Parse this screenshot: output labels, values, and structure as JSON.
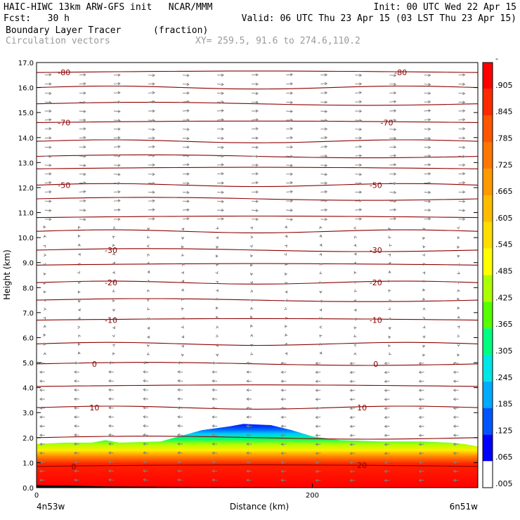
{
  "header": {
    "line1_left": "HAIC-HIWC 13km ARW-GFS init   NCAR/MMM",
    "line1_right": "Init: 00 UTC Wed 22 Apr 15",
    "line2_left": "Fcst:   30 h",
    "line2_right": "Valid: 06 UTC Thu 23 Apr 15 (03 LST Thu 23 Apr 15)",
    "field_name": "Boundary Layer Tracer",
    "field_units": "(fraction)",
    "vector_label": "Circulation vectors",
    "cross_section": "XY= 259.5, 91.6 to 274.6,110.2"
  },
  "colors": {
    "contour": "#8b0000",
    "vector": "#808080",
    "ramp": [
      "#ffffff",
      "#0000ff",
      "#0055ff",
      "#00aaff",
      "#00e5e5",
      "#00ff80",
      "#55ff00",
      "#aaff00",
      "#ffff00",
      "#ffdd00",
      "#ffbb00",
      "#ff9900",
      "#ff7700",
      "#ff5500",
      "#ff2a00",
      "#ff0000"
    ]
  },
  "chart_data": {
    "type": "heatmap",
    "title": "Boundary Layer Tracer",
    "units": "(fraction)",
    "xlabel": "Distance (km)",
    "ylabel": "Height (km)",
    "xlim": [
      0,
      320
    ],
    "ylim": [
      0,
      17
    ],
    "x_ticks": [
      0,
      200
    ],
    "x_tick_labels": [
      "0",
      "200"
    ],
    "x_end_labels": [
      "4n53w",
      "6n51w"
    ],
    "y_ticks": [
      0,
      1,
      2,
      3,
      4,
      5,
      6,
      7,
      8,
      9,
      10,
      11,
      12,
      13,
      14,
      15,
      16,
      17
    ],
    "y_tick_labels": [
      "0.0",
      "1.0",
      "2.0",
      "3.0",
      "4.0",
      "5.0",
      "6.0",
      "7.0",
      "8.0",
      "9.0",
      "10.0",
      "11.0",
      "12.0",
      "13.0",
      "14.0",
      "15.0",
      "16.0",
      "17.0"
    ],
    "colorbar_labels": [
      ".005",
      ".065",
      ".125",
      ".185",
      ".245",
      ".305",
      ".365",
      ".425",
      ".485",
      ".545",
      ".605",
      ".665",
      ".725",
      ".785",
      ".845",
      ".905",
      "-"
    ],
    "tracer_top_km": [
      [
        0,
        1.75
      ],
      [
        20,
        1.8
      ],
      [
        40,
        1.8
      ],
      [
        50,
        1.9
      ],
      [
        60,
        1.8
      ],
      [
        90,
        1.85
      ],
      [
        100,
        2.0
      ],
      [
        120,
        2.3
      ],
      [
        140,
        2.45
      ],
      [
        150,
        2.55
      ],
      [
        170,
        2.5
      ],
      [
        185,
        2.3
      ],
      [
        200,
        2.05
      ],
      [
        220,
        1.9
      ],
      [
        250,
        1.85
      ],
      [
        280,
        1.85
      ],
      [
        300,
        1.8
      ],
      [
        310,
        1.75
      ],
      [
        320,
        1.65
      ]
    ],
    "terrain_km": [
      [
        0,
        0.1
      ],
      [
        50,
        0.05
      ],
      [
        100,
        0.03
      ],
      [
        160,
        0.02
      ],
      [
        230,
        0.01
      ],
      [
        320,
        0.0
      ]
    ],
    "temperature_contours_c": [
      -80,
      -70,
      -60,
      -50,
      -40,
      -30,
      -20,
      -10,
      0,
      10,
      20
    ],
    "contour_labels": [
      {
        "text": "-80",
        "x": 20,
        "y": 16.6
      },
      {
        "text": "-80",
        "x": 264,
        "y": 16.6
      },
      {
        "text": "-70",
        "x": 20,
        "y": 14.6
      },
      {
        "text": "-70",
        "x": 254,
        "y": 14.6
      },
      {
        "text": "-50",
        "x": 20,
        "y": 12.1
      },
      {
        "text": "-50",
        "x": 246,
        "y": 12.1
      },
      {
        "text": "-30",
        "x": 54,
        "y": 9.5
      },
      {
        "text": "-30",
        "x": 246,
        "y": 9.5
      },
      {
        "text": "-20",
        "x": 54,
        "y": 8.2
      },
      {
        "text": "-20",
        "x": 246,
        "y": 8.2
      },
      {
        "text": "-10",
        "x": 54,
        "y": 6.7
      },
      {
        "text": "-10",
        "x": 246,
        "y": 6.7
      },
      {
        "text": "0",
        "x": 42,
        "y": 4.95
      },
      {
        "text": "0",
        "x": 246,
        "y": 4.95
      },
      {
        "text": "10",
        "x": 42,
        "y": 3.2
      },
      {
        "text": "10",
        "x": 236,
        "y": 3.2
      },
      {
        "text": "0",
        "x": 27,
        "y": 0.85
      },
      {
        "text": "20",
        "x": 236,
        "y": 0.9
      }
    ],
    "grid": false
  }
}
